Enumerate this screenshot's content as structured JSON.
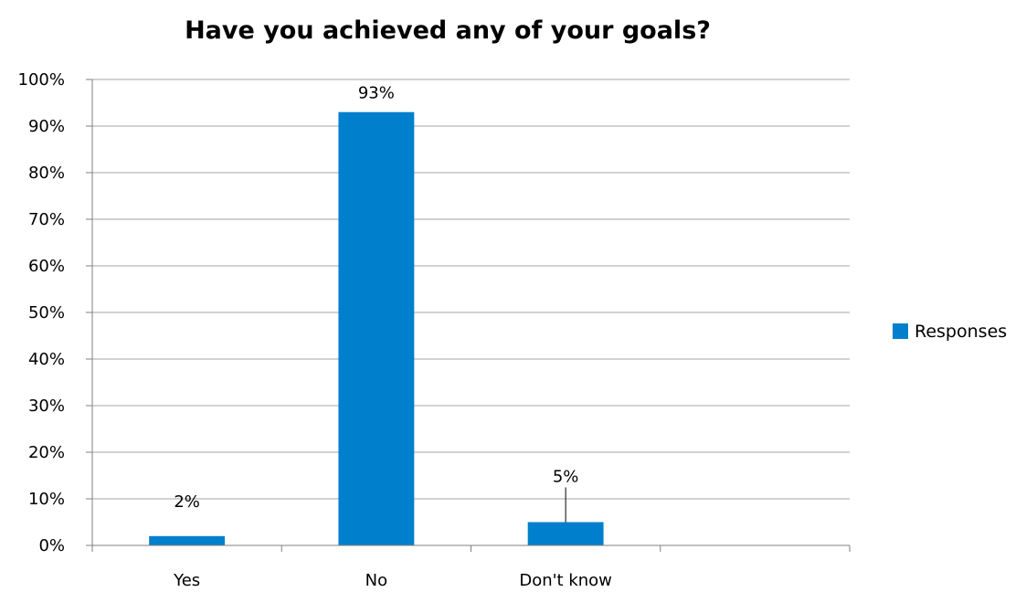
{
  "chart_data": {
    "type": "bar",
    "title": "Have you achieved any of your goals?",
    "categories": [
      "Yes",
      "No",
      "Don't know",
      ""
    ],
    "series": [
      {
        "name": "Responses",
        "values": [
          2,
          93,
          5,
          null
        ],
        "color": "#0080CC"
      }
    ],
    "data_labels": [
      "2%",
      "93%",
      "5%",
      ""
    ],
    "ylim": [
      0,
      100
    ],
    "ytick_step": 10,
    "ytick_labels": [
      "0%",
      "10%",
      "20%",
      "30%",
      "40%",
      "50%",
      "60%",
      "70%",
      "80%",
      "90%",
      "100%"
    ],
    "xlabel": "",
    "ylabel": "",
    "grid": true,
    "legend_position": "right",
    "gridline_color": "#A6A6A6",
    "axis_color": "#7F7F7F"
  }
}
